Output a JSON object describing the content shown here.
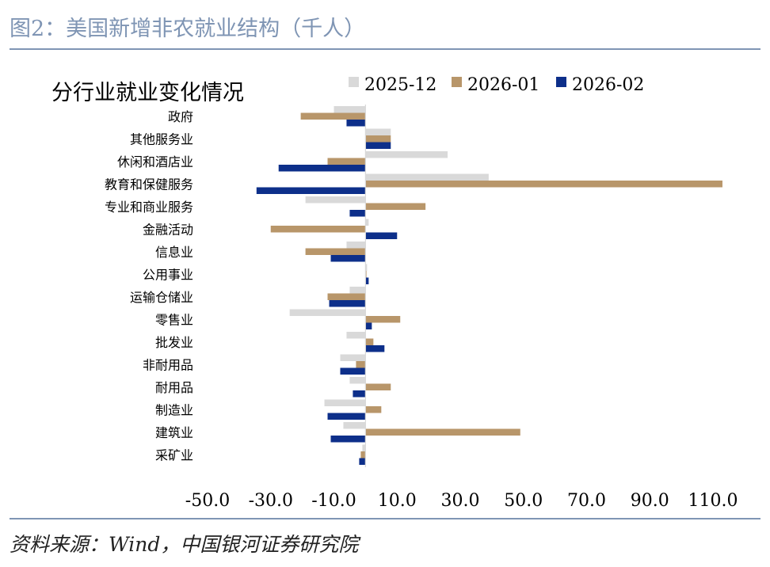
{
  "figure": {
    "title": "图2：美国新增非农就业结构（千人）",
    "source": "资料来源：Wind，中国银河证券研究院"
  },
  "chart_data": {
    "type": "bar",
    "orientation": "horizontal",
    "title": "分行业就业变化情况",
    "xlabel": "",
    "ylabel": "",
    "xlim": [
      -50,
      110
    ],
    "xticks": [
      "-50.0",
      "-30.0",
      "-10.0",
      "10.0",
      "30.0",
      "50.0",
      "70.0",
      "90.0",
      "110.0"
    ],
    "legend_position": "top",
    "categories": [
      "政府",
      "其他服务业",
      "休闲和酒店业",
      "教育和保健服务",
      "专业和商业服务",
      "金融活动",
      "信息业",
      "公用事业",
      "运输仓储业",
      "零售业",
      "批发业",
      "非耐用品",
      "耐用品",
      "制造业",
      "建筑业",
      "采矿业"
    ],
    "series": [
      {
        "name": "2025-12",
        "color": "#d9d9d9",
        "values": [
          -10,
          8,
          26,
          39,
          -19,
          1,
          -6,
          0.5,
          -5,
          -24,
          -6,
          -8,
          -5,
          -13,
          -7,
          -1
        ]
      },
      {
        "name": "2026-01",
        "color": "#b8966a",
        "values": [
          -20.5,
          8,
          -12,
          113,
          19,
          -30,
          -19,
          0.3,
          -12,
          11,
          2.5,
          -3,
          8,
          5,
          49,
          -1.5
        ]
      },
      {
        "name": "2026-02",
        "color": "#0d2f8a",
        "values": [
          -6,
          8,
          -27.5,
          -34.5,
          -5,
          10,
          -11,
          1,
          -11.5,
          2,
          6,
          -8,
          -4,
          -12,
          -11,
          -2
        ]
      }
    ]
  }
}
